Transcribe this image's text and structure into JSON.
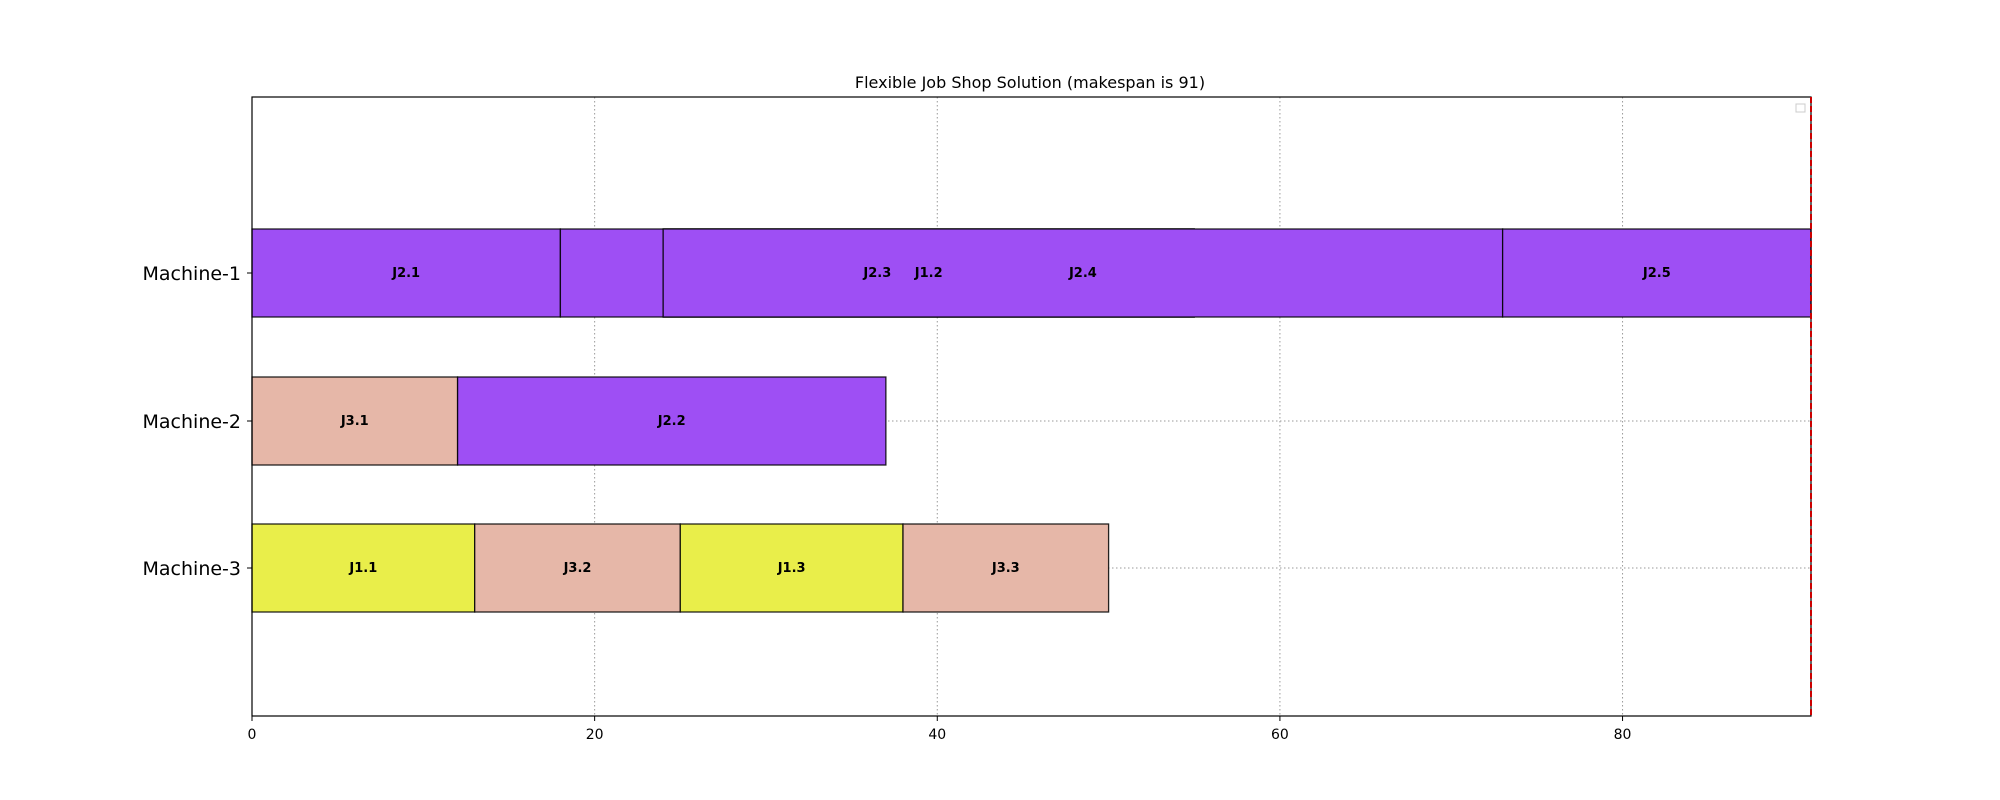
{
  "chart_data": {
    "type": "gantt",
    "title": "Flexible Job Shop Solution (makespan is 91)",
    "xlabel": "",
    "ylabel": "",
    "xlim": [
      0,
      91
    ],
    "xticks": [
      0,
      20,
      40,
      60,
      80
    ],
    "grid": true,
    "legend": "top-right (empty)",
    "makespan": 91,
    "makespan_line_color": "#cc0000",
    "machines": [
      "Machine-1",
      "Machine-2",
      "Machine-3"
    ],
    "job_colors": {
      "J1": "#e9ee4a",
      "J2": "#9e4ff4",
      "J3": "#e6b7a8"
    },
    "operations": [
      {
        "label": "J2.1",
        "job": "J2",
        "machine": "Machine-1",
        "start": 0,
        "end": 18
      },
      {
        "label": "J2.3",
        "job": "J2",
        "machine": "Machine-1",
        "start": 18,
        "end": 55
      },
      {
        "label": "J1.2",
        "job": "J1",
        "machine": "Machine-1",
        "start": 24,
        "end": 55
      },
      {
        "label": "J2.4",
        "job": "J2",
        "machine": "Machine-1",
        "start": 24,
        "end": 73
      },
      {
        "label": "J2.5",
        "job": "J2",
        "machine": "Machine-1",
        "start": 73,
        "end": 91
      },
      {
        "label": "J3.1",
        "job": "J3",
        "machine": "Machine-2",
        "start": 0,
        "end": 12
      },
      {
        "label": "J2.2",
        "job": "J2",
        "machine": "Machine-2",
        "start": 12,
        "end": 37
      },
      {
        "label": "J1.1",
        "job": "J1",
        "machine": "Machine-3",
        "start": 0,
        "end": 13
      },
      {
        "label": "J3.2",
        "job": "J3",
        "machine": "Machine-3",
        "start": 13,
        "end": 25
      },
      {
        "label": "J1.3",
        "job": "J1",
        "machine": "Machine-3",
        "start": 25,
        "end": 38
      },
      {
        "label": "J3.3",
        "job": "J3",
        "machine": "Machine-3",
        "start": 38,
        "end": 50
      }
    ]
  }
}
